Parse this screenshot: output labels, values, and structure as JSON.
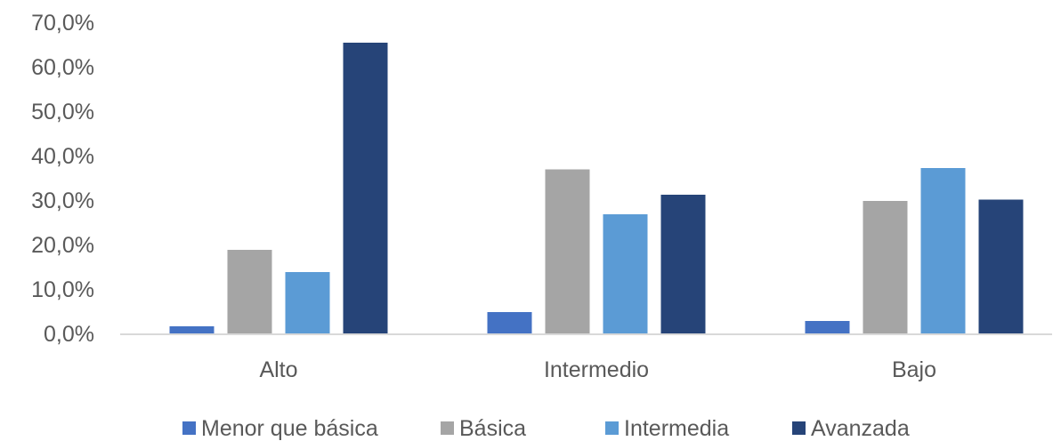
{
  "chart_data": {
    "type": "bar",
    "title": "",
    "xlabel": "",
    "ylabel": "",
    "categories": [
      "Alto",
      "Intermedio",
      "Bajo"
    ],
    "series": [
      {
        "name": "Menor que básica",
        "color": "#4472c4",
        "values": [
          1.6,
          4.8,
          2.8
        ]
      },
      {
        "name": "Básica",
        "color": "#a5a5a5",
        "values": [
          18.8,
          36.9,
          29.8
        ]
      },
      {
        "name": "Intermedia",
        "color": "#5b9bd5",
        "values": [
          13.8,
          26.8,
          37.2
        ]
      },
      {
        "name": "Avanzada",
        "color": "#264478",
        "values": [
          65.4,
          31.2,
          30.1
        ]
      }
    ],
    "ylim": [
      0,
      70
    ],
    "ytick_values": [
      0,
      10,
      20,
      30,
      40,
      50,
      60,
      70
    ],
    "ytick_labels": [
      "0,0%",
      "10,0%",
      "20,0%",
      "30,0%",
      "40,0%",
      "50,0%",
      "60,0%",
      "70,0%"
    ],
    "grid": false,
    "legend_position": "bottom"
  }
}
